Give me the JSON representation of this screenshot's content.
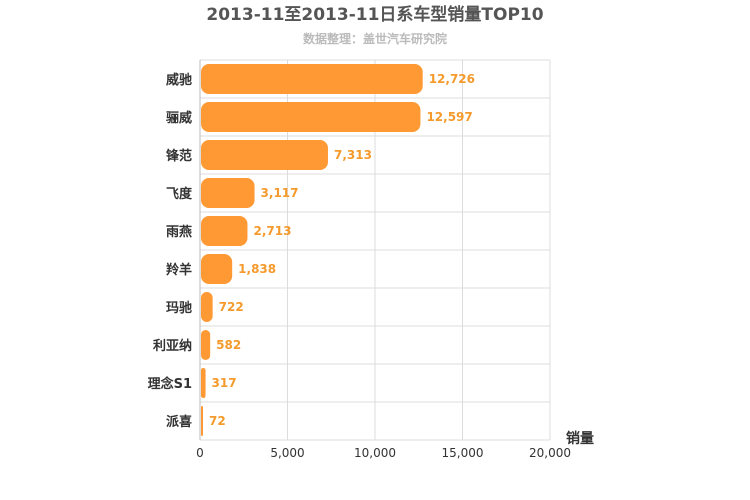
{
  "chart_data": {
    "type": "bar",
    "orientation": "horizontal",
    "title": "2013-11至2013-11日系车型销量TOP10",
    "subtitle": "数据整理：盖世汽车研究院",
    "categories": [
      "威驰",
      "骊威",
      "锋范",
      "飞度",
      "雨燕",
      "羚羊",
      "玛驰",
      "利亚纳",
      "理念S1",
      "派喜"
    ],
    "values": [
      12726,
      12597,
      7313,
      3117,
      2713,
      1838,
      722,
      582,
      317,
      72
    ],
    "value_labels": [
      "12,726",
      "12,597",
      "7,313",
      "3,117",
      "2,713",
      "1,838",
      "722",
      "582",
      "317",
      "72"
    ],
    "xlabel": "销量",
    "ylabel": "",
    "xlim": [
      0,
      20000
    ],
    "x_ticks": [
      0,
      5000,
      10000,
      15000,
      20000
    ],
    "x_tick_labels": [
      "0",
      "5,000",
      "10,000",
      "15,000",
      "20,000"
    ],
    "grid": true,
    "bar_color": "#ff9933",
    "value_label_color": "#f59a2c"
  }
}
